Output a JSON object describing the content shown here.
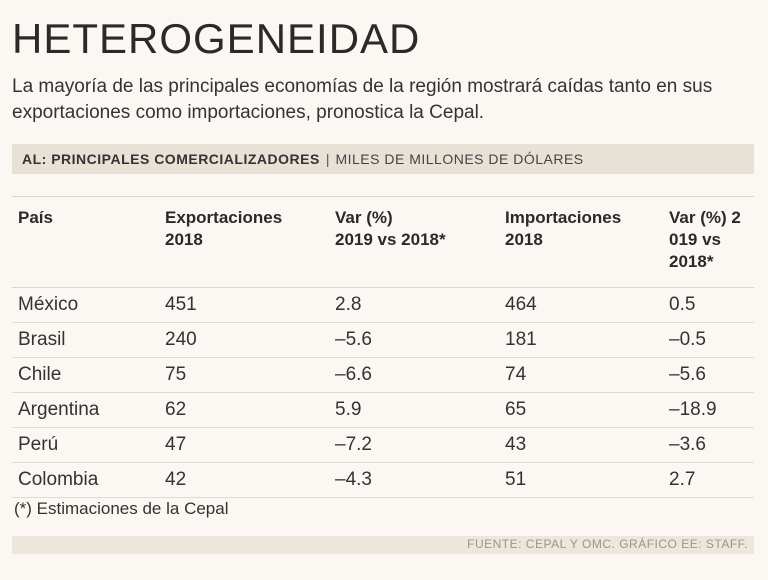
{
  "header": {
    "title": "HETEROGENEIDAD",
    "subtitle": "La mayoría de las principales economías de la región mostrará caídas tanto en sus exportaciones como importaciones, pronostica la Cepal."
  },
  "bar": {
    "label_bold": "AL: PRINCIPALES COMERCIALIZADORES",
    "separator": "|",
    "label_units": "MILES DE MILLONES DE DÓLARES"
  },
  "chart_data": {
    "type": "table",
    "title": "AL: PRINCIPALES COMERCIALIZADORES",
    "units": "MILES DE MILLONES DE DÓLARES",
    "columns": [
      "País",
      "Exportaciones 2018",
      "Var (%) 2019 vs 2018*",
      "Importaciones 2018",
      "Var (%) 2 019 vs 2018*"
    ],
    "rows": [
      [
        "México",
        "451",
        "2.8",
        "464",
        "0.5"
      ],
      [
        "Brasil",
        "240",
        "–5.6",
        "181",
        "–0.5"
      ],
      [
        "Chile",
        "75",
        "–6.6",
        "74",
        "–5.6"
      ],
      [
        "Argentina",
        "62",
        "5.9",
        "65",
        "–18.9"
      ],
      [
        "Perú",
        "47",
        "–7.2",
        "43",
        "–3.6"
      ],
      [
        "Colombia",
        "42",
        "–4.3",
        "51",
        "2.7"
      ]
    ]
  },
  "columns": {
    "c0": "País",
    "c1a": "Exportaciones",
    "c1b": "2018",
    "c2a": "Var (%)",
    "c2b": "2019 vs 2018*",
    "c3a": "Importaciones",
    "c3b": "2018",
    "c4a": "Var (%) 2",
    "c4b": "019 vs 2018*"
  },
  "rows": [
    {
      "pais": "México",
      "exp": "451",
      "var_exp": "2.8",
      "imp": "464",
      "var_imp": "0.5"
    },
    {
      "pais": "Brasil",
      "exp": "240",
      "var_exp": "–5.6",
      "imp": "181",
      "var_imp": "–0.5"
    },
    {
      "pais": "Chile",
      "exp": "75",
      "var_exp": "–6.6",
      "imp": "74",
      "var_imp": "–5.6"
    },
    {
      "pais": "Argentina",
      "exp": "62",
      "var_exp": "5.9",
      "imp": "65",
      "var_imp": "–18.9"
    },
    {
      "pais": "Perú",
      "exp": "47",
      "var_exp": "–7.2",
      "imp": "43",
      "var_imp": "–3.6"
    },
    {
      "pais": "Colombia",
      "exp": "42",
      "var_exp": "–4.3",
      "imp": "51",
      "var_imp": "2.7"
    }
  ],
  "note": "(*) Estimaciones de la Cepal",
  "footer": "FUENTE: CEPAL Y OMC. GRÁFICO EE: STAFF."
}
